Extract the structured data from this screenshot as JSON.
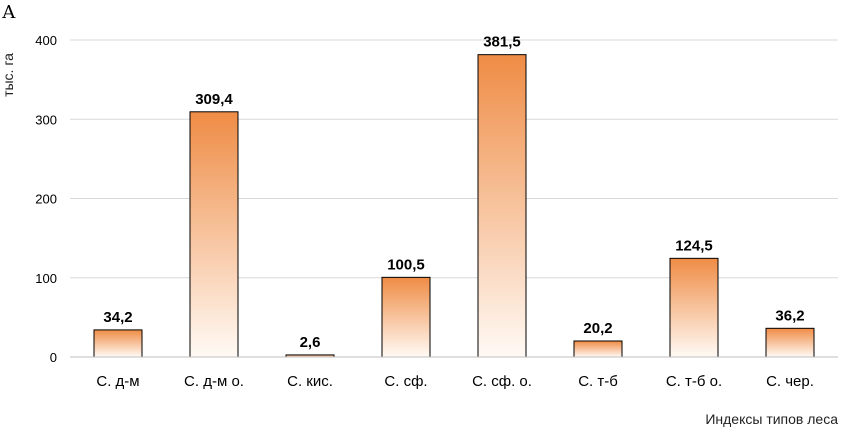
{
  "panel_label": "А",
  "chart_data": {
    "type": "bar",
    "title": "",
    "xlabel": "Индексы типов леса",
    "ylabel": "тыс. га",
    "categories": [
      "С. д-м",
      "С. д-м о.",
      "С. кис.",
      "С. сф.",
      "С. сф. о.",
      "С. т-б",
      "С. т-б о.",
      "С. чер."
    ],
    "values": [
      34.2,
      309.4,
      2.6,
      100.5,
      381.5,
      20.2,
      124.5,
      36.2
    ],
    "value_labels": [
      "34,2",
      "309,4",
      "2,6",
      "100,5",
      "381,5",
      "20,2",
      "124,5",
      "36,2"
    ],
    "yticks": [
      0,
      100,
      200,
      300,
      400
    ],
    "ylim": [
      0,
      400
    ],
    "grid": "horizontal",
    "legend": "none",
    "colors": {
      "bar_top": "#ef8c45",
      "bar_bottom": "#fffaf5",
      "bar_stroke": "#000000",
      "grid": "#d9d9d9"
    }
  }
}
